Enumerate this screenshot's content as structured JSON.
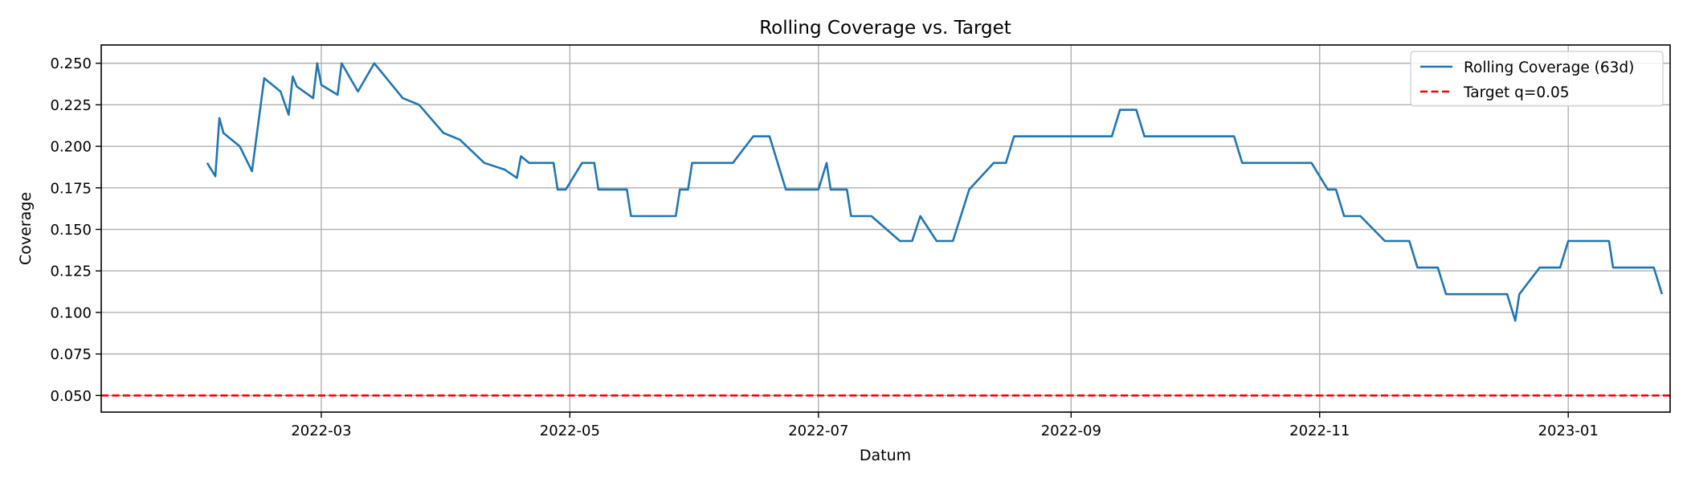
{
  "chart_data": {
    "type": "line",
    "title": "Rolling Coverage vs. Target",
    "xlabel": "Datum",
    "ylabel": "Coverage",
    "x_type": "date",
    "xlim": [
      "2022-01-06",
      "2023-01-26"
    ],
    "ylim": [
      0.04,
      0.261
    ],
    "x_ticks": [
      "2022-03-01",
      "2022-05-01",
      "2022-07-01",
      "2022-09-01",
      "2022-11-01",
      "2023-01-01"
    ],
    "x_tick_labels": [
      "2022-03",
      "2022-05",
      "2022-07",
      "2022-09",
      "2022-11",
      "2023-01"
    ],
    "y_ticks": [
      0.05,
      0.075,
      0.1,
      0.125,
      0.15,
      0.175,
      0.2,
      0.225,
      0.25
    ],
    "y_tick_labels": [
      "0.050",
      "0.075",
      "0.100",
      "0.125",
      "0.150",
      "0.175",
      "0.200",
      "0.225",
      "0.250"
    ],
    "grid": true,
    "legend_position": "top-right",
    "series": [
      {
        "name": "Rolling Coverage (63d)",
        "color": "#1f77b4",
        "style": "solid",
        "points": [
          [
            "2022-02-01",
            0.19
          ],
          [
            "2022-02-03",
            0.182
          ],
          [
            "2022-02-04",
            0.217
          ],
          [
            "2022-02-05",
            0.208
          ],
          [
            "2022-02-09",
            0.2
          ],
          [
            "2022-02-12",
            0.185
          ],
          [
            "2022-02-15",
            0.241
          ],
          [
            "2022-02-19",
            0.233
          ],
          [
            "2022-02-21",
            0.219
          ],
          [
            "2022-02-22",
            0.242
          ],
          [
            "2022-02-23",
            0.236
          ],
          [
            "2022-02-27",
            0.229
          ],
          [
            "2022-02-28",
            0.25
          ],
          [
            "2022-03-01",
            0.237
          ],
          [
            "2022-03-05",
            0.231
          ],
          [
            "2022-03-06",
            0.25
          ],
          [
            "2022-03-10",
            0.233
          ],
          [
            "2022-03-14",
            0.25
          ],
          [
            "2022-03-21",
            0.229
          ],
          [
            "2022-03-25",
            0.225
          ],
          [
            "2022-03-31",
            0.208
          ],
          [
            "2022-04-04",
            0.204
          ],
          [
            "2022-04-10",
            0.19
          ],
          [
            "2022-04-15",
            0.186
          ],
          [
            "2022-04-18",
            0.181
          ],
          [
            "2022-04-19",
            0.194
          ],
          [
            "2022-04-21",
            0.19
          ],
          [
            "2022-04-27",
            0.19
          ],
          [
            "2022-04-28",
            0.174
          ],
          [
            "2022-04-30",
            0.174
          ],
          [
            "2022-05-04",
            0.19
          ],
          [
            "2022-05-07",
            0.19
          ],
          [
            "2022-05-08",
            0.174
          ],
          [
            "2022-05-15",
            0.174
          ],
          [
            "2022-05-16",
            0.158
          ],
          [
            "2022-05-27",
            0.158
          ],
          [
            "2022-05-28",
            0.174
          ],
          [
            "2022-05-30",
            0.174
          ],
          [
            "2022-05-31",
            0.19
          ],
          [
            "2022-06-10",
            0.19
          ],
          [
            "2022-06-15",
            0.206
          ],
          [
            "2022-06-19",
            0.206
          ],
          [
            "2022-06-23",
            0.174
          ],
          [
            "2022-07-01",
            0.174
          ],
          [
            "2022-07-03",
            0.19
          ],
          [
            "2022-07-04",
            0.174
          ],
          [
            "2022-07-08",
            0.174
          ],
          [
            "2022-07-09",
            0.158
          ],
          [
            "2022-07-14",
            0.158
          ],
          [
            "2022-07-21",
            0.143
          ],
          [
            "2022-07-24",
            0.143
          ],
          [
            "2022-07-26",
            0.158
          ],
          [
            "2022-07-30",
            0.143
          ],
          [
            "2022-08-03",
            0.143
          ],
          [
            "2022-08-07",
            0.174
          ],
          [
            "2022-08-13",
            0.19
          ],
          [
            "2022-08-16",
            0.19
          ],
          [
            "2022-08-18",
            0.206
          ],
          [
            "2022-09-11",
            0.206
          ],
          [
            "2022-09-13",
            0.222
          ],
          [
            "2022-09-17",
            0.222
          ],
          [
            "2022-09-19",
            0.206
          ],
          [
            "2022-10-11",
            0.206
          ],
          [
            "2022-10-13",
            0.19
          ],
          [
            "2022-10-30",
            0.19
          ],
          [
            "2022-11-03",
            0.174
          ],
          [
            "2022-11-05",
            0.174
          ],
          [
            "2022-11-07",
            0.158
          ],
          [
            "2022-11-11",
            0.158
          ],
          [
            "2022-11-17",
            0.143
          ],
          [
            "2022-11-23",
            0.143
          ],
          [
            "2022-11-25",
            0.127
          ],
          [
            "2022-11-30",
            0.127
          ],
          [
            "2022-12-02",
            0.111
          ],
          [
            "2022-12-17",
            0.111
          ],
          [
            "2022-12-19",
            0.095
          ],
          [
            "2022-12-20",
            0.111
          ],
          [
            "2022-12-25",
            0.127
          ],
          [
            "2022-12-30",
            0.127
          ],
          [
            "2023-01-01",
            0.143
          ],
          [
            "2023-01-11",
            0.143
          ],
          [
            "2023-01-12",
            0.127
          ],
          [
            "2023-01-22",
            0.127
          ],
          [
            "2023-01-24",
            0.111
          ]
        ]
      },
      {
        "name": "Target q=0.05",
        "color": "#ff0000",
        "style": "dashed",
        "y": 0.05
      }
    ]
  }
}
